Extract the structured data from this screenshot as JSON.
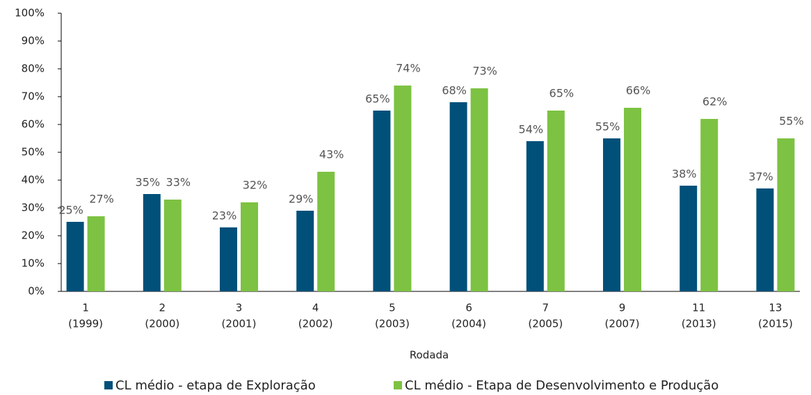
{
  "chart_data": {
    "type": "bar",
    "categories": [
      [
        "1",
        "(1999)"
      ],
      [
        "2",
        "(2000)"
      ],
      [
        "3",
        "(2001)"
      ],
      [
        "4",
        "(2002)"
      ],
      [
        "5",
        "(2003)"
      ],
      [
        "6",
        "(2004)"
      ],
      [
        "7",
        "(2005)"
      ],
      [
        "9",
        "(2007)"
      ],
      [
        "11",
        "(2013)"
      ],
      [
        "13",
        "(2015)"
      ]
    ],
    "x_label": "Rodada",
    "series": [
      {
        "name": "CL médio - etapa de Exploração",
        "color": "#00507a",
        "values": [
          25,
          35,
          23,
          29,
          65,
          68,
          54,
          55,
          38,
          37
        ],
        "value_labels": [
          "25%",
          "35%",
          "23%",
          "29%",
          "65%",
          "68%",
          "54%",
          "55%",
          "38%",
          "37%"
        ]
      },
      {
        "name": "CL médio - Etapa de Desenvolvimento e Produção",
        "color": "#7dc242",
        "values": [
          27,
          33,
          32,
          43,
          74,
          73,
          65,
          66,
          62,
          55
        ],
        "value_labels": [
          "27%",
          "33%",
          "32%",
          "43%",
          "74%",
          "73%",
          "65%",
          "66%",
          "62%",
          "55%"
        ]
      }
    ],
    "ylim": [
      0,
      100
    ],
    "yticks": [
      {
        "value": 0,
        "label": "0%"
      },
      {
        "value": 10,
        "label": "10%"
      },
      {
        "value": 20,
        "label": "20%"
      },
      {
        "value": 30,
        "label": "30%"
      },
      {
        "value": 40,
        "label": "40%"
      },
      {
        "value": 50,
        "label": "50%"
      },
      {
        "value": 60,
        "label": "60%"
      },
      {
        "value": 70,
        "label": "70%"
      },
      {
        "value": 80,
        "label": "80%"
      },
      {
        "value": 90,
        "label": "90%"
      },
      {
        "value": 100,
        "label": "100%"
      }
    ],
    "legend": "bottom"
  }
}
